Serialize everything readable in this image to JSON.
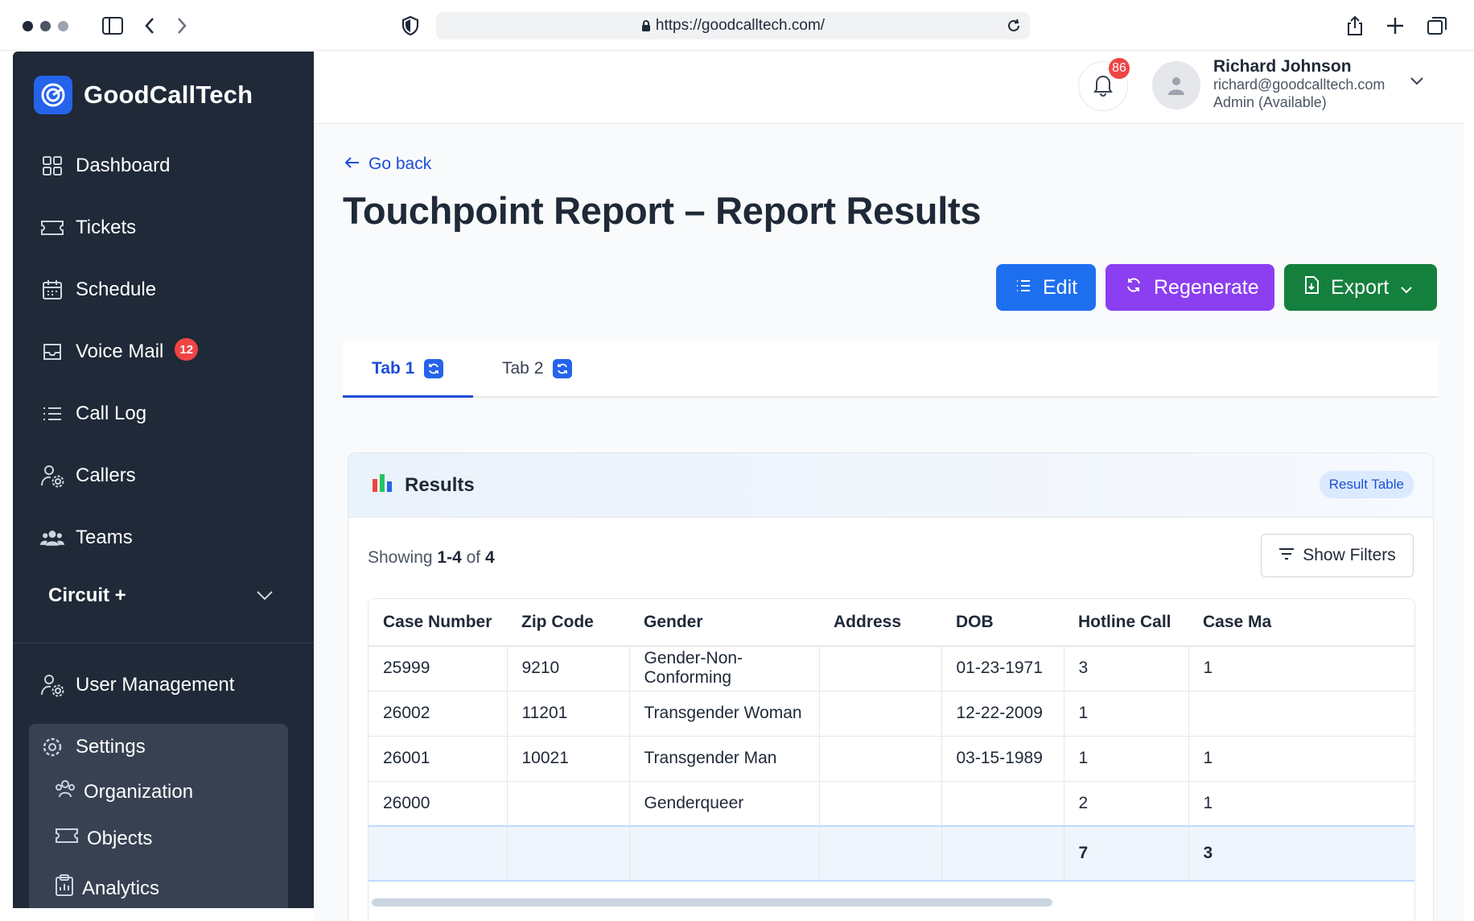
{
  "browser": {
    "url": "https://goodcalltech.com/"
  },
  "brand": {
    "name": "GoodCallTech"
  },
  "sidebar": {
    "items": [
      {
        "label": "Dashboard",
        "icon": "grid-icon"
      },
      {
        "label": "Tickets",
        "icon": "ticket-icon"
      },
      {
        "label": "Schedule",
        "icon": "calendar-icon"
      },
      {
        "label": "Voice Mail",
        "icon": "inbox-icon",
        "badge": "12"
      },
      {
        "label": "Call Log",
        "icon": "list-icon"
      },
      {
        "label": "Callers",
        "icon": "users-cog-icon"
      },
      {
        "label": "Teams",
        "icon": "team-icon"
      }
    ],
    "circuit_label": "Circuit +",
    "user_management": "User Management",
    "settings": {
      "label": "Settings",
      "children": [
        "Organization",
        "Objects",
        "Analytics"
      ]
    }
  },
  "header": {
    "notification_count": "86",
    "user": {
      "name": "Richard Johnson",
      "email": "richard@goodcalltech.com",
      "role": "Admin (Available)"
    }
  },
  "page": {
    "go_back": "Go back",
    "title": "Touchpoint Report – Report Results",
    "actions": {
      "edit": "Edit",
      "regenerate": "Regenerate",
      "export": "Export"
    },
    "tabs": [
      "Tab 1",
      "Tab 2"
    ],
    "active_tab": "Tab 1"
  },
  "results": {
    "title": "Results",
    "pill": "Result Table",
    "showing_prefix": "Showing",
    "showing_range": "1-4",
    "showing_of": "of",
    "showing_total": "4",
    "show_filters": "Show Filters",
    "columns": [
      "Case Number",
      "Zip Code",
      "Gender",
      "Address",
      "DOB",
      "Hotline Call",
      "Case Ma"
    ],
    "rows": [
      [
        "25999",
        "9210",
        "Gender-Non-Conforming",
        "",
        "01-23-1971",
        "3",
        "1"
      ],
      [
        "26002",
        "11201",
        "Transgender Woman",
        "",
        "12-22-2009",
        "1",
        ""
      ],
      [
        "26001",
        "10021",
        "Transgender Man",
        "",
        "03-15-1989",
        "1",
        "1"
      ],
      [
        "26000",
        "",
        "Genderqueer",
        "",
        "",
        "2",
        "1"
      ]
    ],
    "totals": [
      "",
      "",
      "",
      "",
      "",
      "7",
      "3"
    ]
  },
  "colors": {
    "sidebar_bg": "#1f2937",
    "primary": "#1d6ff0",
    "purple": "#8b3ff0",
    "green": "#15803d",
    "badge_red": "#ef4444"
  }
}
